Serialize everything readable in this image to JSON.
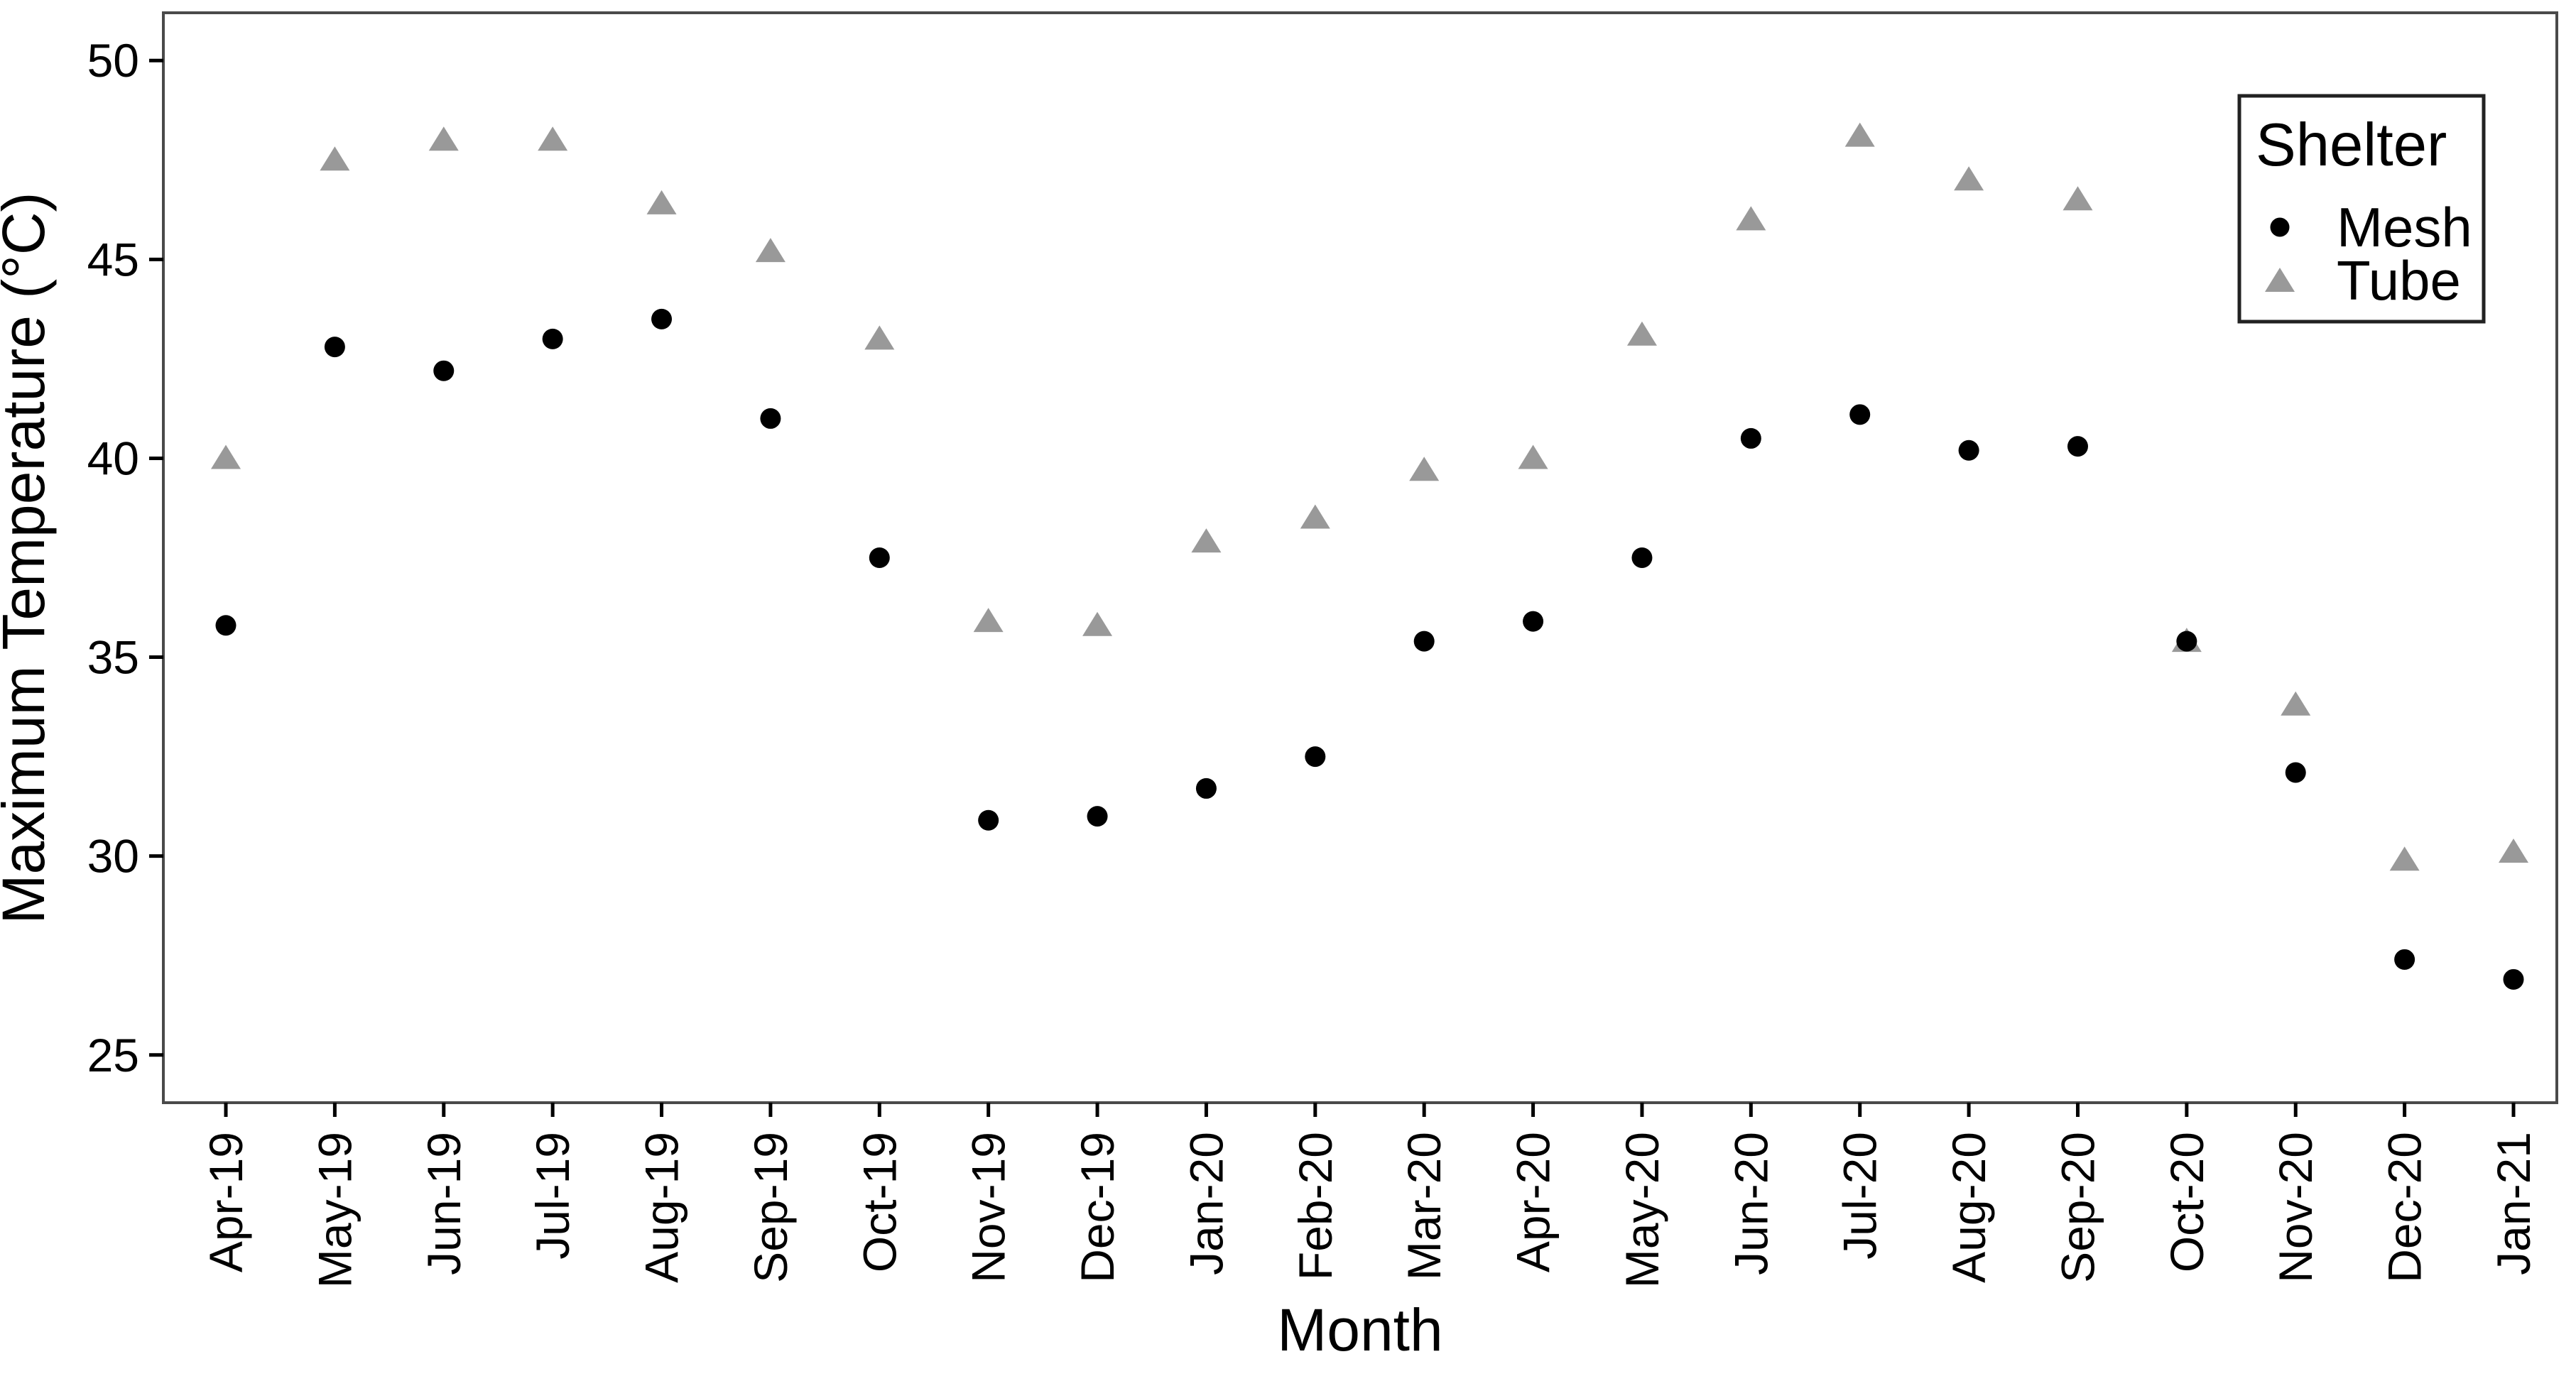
{
  "chart_data": {
    "type": "scatter",
    "title": "",
    "xlabel": "Month",
    "ylabel": "Maximum Temperature (°C)",
    "legend": {
      "title": "Shelter",
      "position": "top-right-inside"
    },
    "categories": [
      "Apr-19",
      "May-19",
      "Jun-19",
      "Jul-19",
      "Aug-19",
      "Sep-19",
      "Oct-19",
      "Nov-19",
      "Dec-19",
      "Jan-20",
      "Feb-20",
      "Mar-20",
      "Apr-20",
      "May-20",
      "Jun-20",
      "Jul-20",
      "Aug-20",
      "Sep-20",
      "Oct-20",
      "Nov-20",
      "Dec-20",
      "Jan-21"
    ],
    "series": [
      {
        "name": "Mesh",
        "marker": "circle",
        "color": "#000000",
        "values": [
          35.8,
          42.8,
          42.2,
          43.0,
          43.5,
          41.0,
          37.5,
          30.9,
          31.0,
          31.7,
          32.5,
          35.4,
          35.9,
          37.5,
          40.5,
          41.1,
          40.2,
          40.3,
          35.4,
          32.1,
          27.4,
          26.9
        ]
      },
      {
        "name": "Tube",
        "marker": "triangle",
        "color": "#999999",
        "values": [
          40.0,
          47.5,
          48.0,
          48.0,
          46.4,
          45.2,
          43.0,
          35.9,
          35.8,
          37.9,
          38.5,
          39.7,
          40.0,
          43.1,
          46.0,
          48.1,
          47.0,
          46.5,
          35.4,
          33.8,
          29.9,
          30.1
        ]
      }
    ],
    "yticks": [
      "25",
      "30",
      "35",
      "40",
      "45",
      "50"
    ],
    "ylim": [
      23.8,
      51.2
    ],
    "grid": false,
    "panel_border_color": "#4a4a4a",
    "background": "#ffffff"
  }
}
